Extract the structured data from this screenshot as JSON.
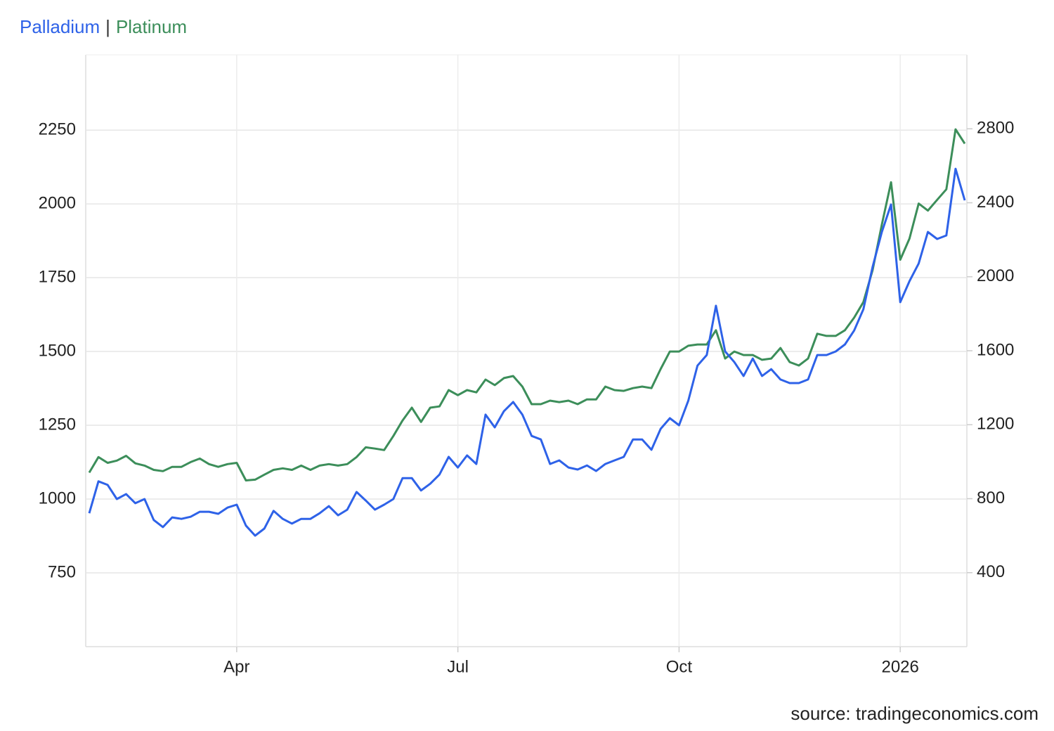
{
  "chart_data": {
    "type": "line",
    "legend_separator": "|",
    "source": "source: tradingeconomics.com",
    "categories": [
      null,
      null,
      null,
      null,
      null,
      null,
      null,
      null,
      null,
      null,
      null,
      null,
      null,
      null,
      null,
      null,
      "Apr",
      null,
      null,
      null,
      null,
      null,
      null,
      null,
      null,
      null,
      null,
      null,
      null,
      null,
      null,
      null,
      null,
      null,
      null,
      null,
      null,
      null,
      null,
      null,
      "Jul",
      null,
      null,
      null,
      null,
      null,
      null,
      null,
      null,
      null,
      null,
      null,
      null,
      null,
      null,
      null,
      null,
      null,
      null,
      null,
      null,
      null,
      null,
      null,
      "Oct",
      null,
      null,
      null,
      null,
      null,
      null,
      null,
      null,
      null,
      null,
      null,
      null,
      null,
      null,
      null,
      null,
      null,
      null,
      null,
      null,
      null,
      null,
      null,
      "2026",
      null,
      null,
      null,
      null,
      null,
      null,
      null
    ],
    "series": [
      {
        "name": "Palladium",
        "color": "#2e62e8",
        "axis": "y",
        "values": [
          952,
          1060,
          1048,
          1000,
          1017,
          986,
          1000,
          929,
          905,
          938,
          933,
          940,
          957,
          957,
          950,
          971,
          981,
          910,
          876,
          900,
          960,
          933,
          917,
          933,
          933,
          952,
          976,
          945,
          964,
          1024,
          995,
          964,
          981,
          1000,
          1071,
          1071,
          1029,
          1052,
          1083,
          1143,
          1107,
          1148,
          1119,
          1286,
          1243,
          1298,
          1329,
          1286,
          1214,
          1202,
          1119,
          1131,
          1107,
          1100,
          1114,
          1095,
          1119,
          1131,
          1143,
          1202,
          1202,
          1167,
          1238,
          1274,
          1250,
          1333,
          1452,
          1488,
          1655,
          1500,
          1464,
          1417,
          1476,
          1417,
          1440,
          1405,
          1393,
          1393,
          1405,
          1488,
          1488,
          1500,
          1524,
          1571,
          1643,
          1786,
          1905,
          1998,
          1667,
          1738,
          1798,
          1905,
          1881,
          1893,
          2119,
          2012
        ]
      },
      {
        "name": "Platinum",
        "color": "#3c8e5a",
        "axis": "y2",
        "values": [
          941,
          1025,
          994,
          1006,
          1032,
          991,
          979,
          956,
          949,
          972,
          972,
          998,
          1017,
          987,
          972,
          987,
          994,
          899,
          903,
          930,
          956,
          964,
          956,
          979,
          956,
          979,
          987,
          979,
          987,
          1025,
          1078,
          1071,
          1063,
          1139,
          1223,
          1292,
          1215,
          1292,
          1299,
          1387,
          1360,
          1387,
          1375,
          1444,
          1414,
          1452,
          1463,
          1406,
          1311,
          1311,
          1330,
          1322,
          1330,
          1311,
          1337,
          1337,
          1406,
          1387,
          1383,
          1398,
          1406,
          1398,
          1501,
          1596,
          1596,
          1627,
          1634,
          1634,
          1711,
          1558,
          1596,
          1577,
          1577,
          1551,
          1558,
          1615,
          1539,
          1520,
          1558,
          1692,
          1680,
          1680,
          1711,
          1779,
          1863,
          2035,
          2282,
          2511,
          2092,
          2206,
          2396,
          2358,
          2416,
          2473,
          2797,
          2720
        ]
      }
    ],
    "ylim": [
      500,
      2505
    ],
    "yticks": [
      750,
      1000,
      1250,
      1500,
      1750,
      2000,
      2250
    ],
    "y2lim": [
      0,
      3200
    ],
    "y2ticks": [
      400,
      800,
      1200,
      1600,
      2000,
      2400,
      2800
    ],
    "grid": true
  }
}
